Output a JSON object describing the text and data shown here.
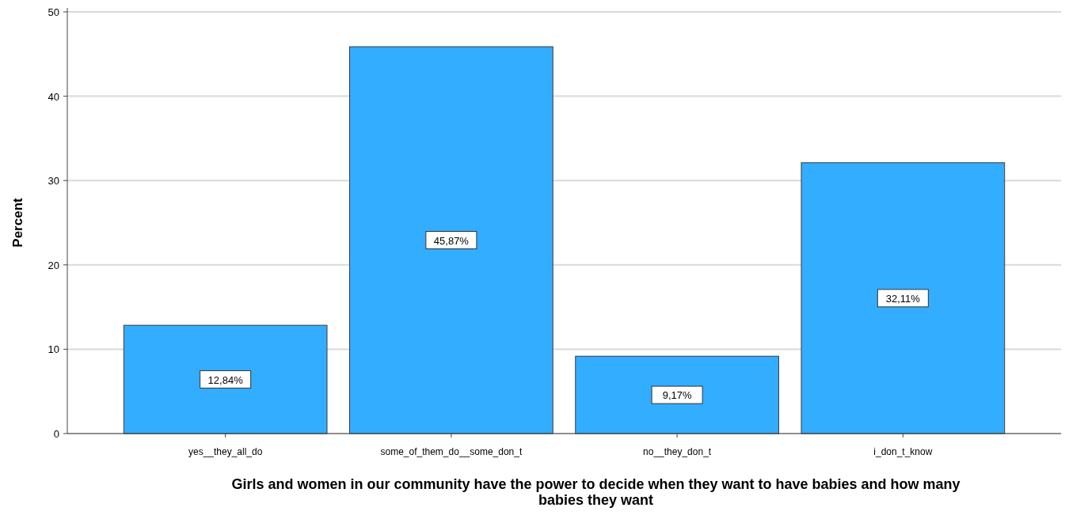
{
  "chart_data": {
    "type": "bar",
    "xlabel": "Girls and women in our community have the power to decide when they want to have babies and how many babies they want",
    "ylabel": "Percent",
    "categories": [
      "yes__they_all_do",
      "some_of_them_do__some_don_t",
      "no__they_don_t",
      "i_don_t_know"
    ],
    "values": [
      12.84,
      45.87,
      9.17,
      32.11
    ],
    "value_labels": [
      "12,84%",
      "45,87%",
      "9,17%",
      "32,11%"
    ],
    "color": "#33adff",
    "ylim": [
      0,
      50
    ],
    "yticks": [
      0,
      10,
      20,
      30,
      40,
      50
    ],
    "grid": "y"
  }
}
